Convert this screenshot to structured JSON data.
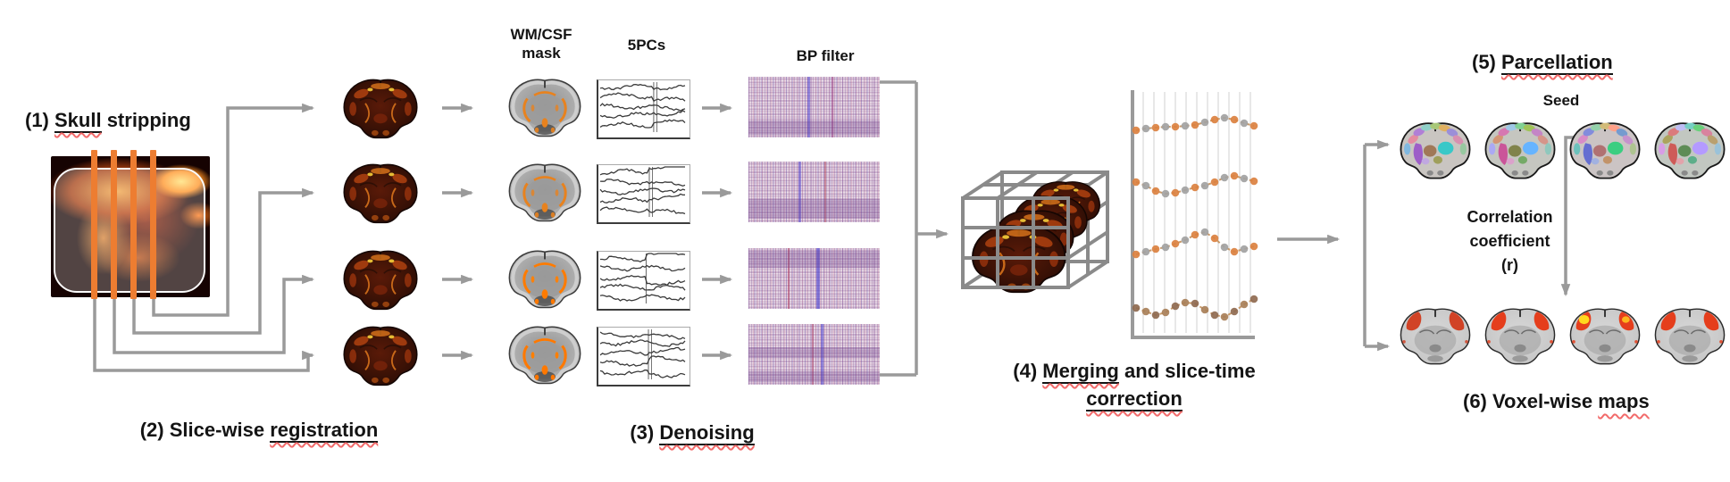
{
  "steps": {
    "s1": {
      "prefix": "(1) ",
      "emph": "Skull",
      "suffix": " stripping"
    },
    "s2": {
      "prefix": "(2) Slice-wise ",
      "emph": "registration",
      "suffix": ""
    },
    "s3": {
      "prefix": "(3) ",
      "emph": "Denoising",
      "suffix": ""
    },
    "s4": {
      "prefix": "(4) ",
      "emph": "Merging",
      "mid": " and slice-time",
      "emph2": "correction"
    },
    "s5": {
      "prefix": "(5) ",
      "emph": "Parcellation",
      "suffix": ""
    },
    "s6": {
      "prefix": "(6) Voxel-wise ",
      "emph": "maps",
      "suffix": ""
    }
  },
  "annotations": {
    "wmcsf_line1": "WM/CSF",
    "wmcsf_line2": "mask",
    "pcs": "5PCs",
    "bp": "BP filter",
    "seed": "Seed",
    "corr_line1": "Correlation",
    "corr_line2": "coefficient",
    "corr_line3": "(r)"
  },
  "colors": {
    "slice_orange": "#ED7D31",
    "arrow_gray": "#9a9a9a",
    "squiggle_red": "#f26b6b",
    "underline_black": "#141414",
    "dot_orange": "#db8140",
    "dot_gray": "#a2a2a2",
    "dot_brown": "#8f6a50"
  },
  "timecourse_offsets": [
    [
      -6,
      -4,
      -3,
      -2,
      -2,
      -1,
      0,
      3,
      6,
      8,
      6,
      2,
      -1
    ],
    [
      4,
      0,
      -6,
      -9,
      -8,
      -5,
      -2,
      0,
      4,
      9,
      11,
      8,
      5
    ],
    [
      -8,
      -5,
      -2,
      0,
      4,
      8,
      14,
      17,
      10,
      0,
      -5,
      -2,
      1
    ],
    [
      0,
      -4,
      -8,
      -5,
      2,
      6,
      5,
      -2,
      -8,
      -10,
      -4,
      4,
      10
    ]
  ]
}
